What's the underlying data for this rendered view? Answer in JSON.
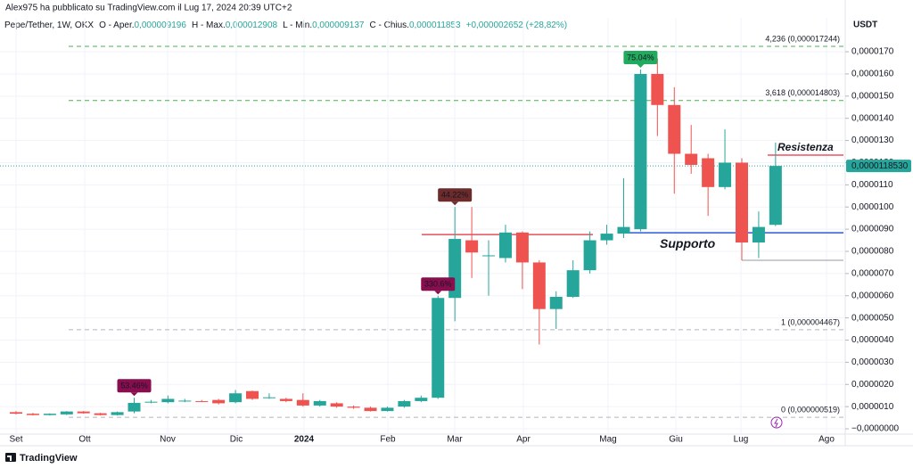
{
  "header": "Alex975 ha pubblicato su TradingView.com il Lug 17, 2024 20:39 UTC+2",
  "footer": "TradingView",
  "chart_data": {
    "type": "candlestick",
    "symbol": "Pepe/Tether, 1W, OKX",
    "legend": [
      {
        "label": "O - Aper.",
        "value": "0,000009196"
      },
      {
        "label": "H - Max.",
        "value": "0,000012908"
      },
      {
        "label": "L - Min.",
        "value": "0,000009137"
      },
      {
        "label": "C - Chius.",
        "value": "0,000011853"
      }
    ],
    "change": "+0,000002652 (+28,82%)",
    "y_unit": "USDT",
    "up_color": "#26a69a",
    "down_color": "#ef5350",
    "open": [
      7.5e-07,
      6.8e-07,
      6.2e-07,
      6.5e-07,
      7.8e-07,
      7e-07,
      6.2e-07,
      7.8e-07,
      1.2e-06,
      1.2e-06,
      1.25e-06,
      1.25e-06,
      1.3e-06,
      1.2e-06,
      1.7e-06,
      1.4e-06,
      1.35e-06,
      1.3e-06,
      1.05e-06,
      1.15e-06,
      1e-06,
      9.5e-07,
      8e-07,
      1e-06,
      1.25e-06,
      1.4e-06,
      5.9e-06,
      8.5e-06,
      7.8e-06,
      7.7e-06,
      8.85e-06,
      7.5e-06,
      5.4e-06,
      5.95e-06,
      7.15e-06,
      8.5e-06,
      8.8e-06,
      9e-06,
      1.6e-05,
      1.46e-05,
      1.24e-05,
      1.22e-05,
      1.09e-05,
      1.2e-05,
      8.4e-06,
      9.196e-06
    ],
    "high": [
      8e-07,
      7.2e-07,
      7e-07,
      8e-07,
      8e-07,
      7.2e-07,
      7.8e-07,
      1.4e-06,
      1.3e-06,
      1.5e-06,
      1.35e-06,
      1.3e-06,
      1.35e-06,
      1.75e-06,
      1.72e-06,
      1.6e-06,
      1.4e-06,
      1.6e-06,
      1.3e-06,
      1.2e-06,
      1.05e-06,
      1e-06,
      1e-06,
      1.3e-06,
      1.5e-06,
      6e-06,
      1e-05,
      1e-05,
      8.5e-06,
      9.2e-06,
      8.9e-06,
      7.6e-06,
      6.2e-06,
      7.6e-06,
      8.9e-06,
      9.2e-06,
      1.13e-05,
      1.62e-05,
      1.67e-05,
      1.54e-05,
      1.37e-05,
      1.24e-05,
      1.35e-05,
      1.22e-05,
      9.8e-06,
      1.2908e-05
    ],
    "low": [
      6.5e-07,
      6e-07,
      6e-07,
      6.2e-07,
      6.8e-07,
      6e-07,
      6e-07,
      7e-07,
      1.15e-06,
      1.15e-06,
      1.2e-06,
      1.2e-06,
      1.1e-06,
      1.15e-06,
      1.3e-06,
      1.35e-06,
      1.2e-06,
      1e-06,
      1e-06,
      9.5e-07,
      9e-07,
      7.8e-07,
      7.8e-07,
      9.5e-07,
      1.2e-06,
      1.35e-06,
      4.85e-06,
      6.8e-06,
      6e-06,
      7.5e-06,
      6.3e-06,
      3.8e-06,
      4.5e-06,
      5.9e-06,
      7e-06,
      8.3e-06,
      8.6e-06,
      8.9e-06,
      1.32e-05,
      1.06e-05,
      1.15e-05,
      9.6e-06,
      1.08e-05,
      7.6e-06,
      7.7e-06,
      9.137e-06
    ],
    "close": [
      6.8e-07,
      6.2e-07,
      6.8e-07,
      7.8e-07,
      7e-07,
      6.2e-07,
      7.5e-07,
      1.17e-06,
      1.22e-06,
      1.35e-06,
      1.27e-06,
      1.23e-06,
      1.15e-06,
      1.6e-06,
      1.35e-06,
      1.42e-06,
      1.25e-06,
      1.05e-06,
      1.25e-06,
      1e-06,
      9.5e-07,
      8e-07,
      9.5e-07,
      1.25e-06,
      1.4e-06,
      5.9e-06,
      8.56e-06,
      7.95e-06,
      7.82e-06,
      8.85e-06,
      7.5e-06,
      5.4e-06,
      5.95e-06,
      7.15e-06,
      8.5e-06,
      8.8e-06,
      9.1e-06,
      1.6e-05,
      1.46e-05,
      1.24e-05,
      1.19e-05,
      1.09e-05,
      1.2e-05,
      8.4e-06,
      9.1e-06,
      1.1853e-05
    ],
    "x_labels": [
      "Set",
      "Ott",
      "Nov",
      "Dic",
      "2024",
      "Feb",
      "Mar",
      "Apr",
      "Mag",
      "Giu",
      "Lug",
      "Ago"
    ],
    "ylim": [
      -2.4e-07,
      1.853e-05
    ],
    "yticks": [
      {
        "value": 0,
        "label": "−0,0000000"
      },
      {
        "value": 1e-06,
        "label": "0,0000010"
      },
      {
        "value": 2e-06,
        "label": "0,0000020"
      },
      {
        "value": 3e-06,
        "label": "0,0000030"
      },
      {
        "value": 4e-06,
        "label": "0,0000040"
      },
      {
        "value": 5e-06,
        "label": "0,0000050"
      },
      {
        "value": 6e-06,
        "label": "0,0000060"
      },
      {
        "value": 7e-06,
        "label": "0,0000070"
      },
      {
        "value": 8e-06,
        "label": "0,0000080"
      },
      {
        "value": 9e-06,
        "label": "0,0000090"
      },
      {
        "value": 1e-05,
        "label": "0,0000100"
      },
      {
        "value": 1.1e-05,
        "label": "0,0000110"
      },
      {
        "value": 1.2e-05,
        "label": "0,0000120"
      },
      {
        "value": 1.3e-05,
        "label": "0,0000130"
      },
      {
        "value": 1.4e-05,
        "label": "0,0000140"
      },
      {
        "value": 1.5e-05,
        "label": "0,0000150"
      },
      {
        "value": 1.6e-05,
        "label": "0,0000160"
      },
      {
        "value": 1.7e-05,
        "label": "0,0000170"
      }
    ],
    "grid": true,
    "last_price": {
      "value": 1.1853e-05,
      "label": "0,0000118530"
    },
    "fib_levels": [
      {
        "label": "4,236 (0,000017244)",
        "value": 1.7244e-05,
        "color": "#4caf50"
      },
      {
        "label": "3,618 (0,000014803)",
        "value": 1.4803e-05,
        "color": "#4caf50"
      },
      {
        "label": "1 (0,000004467)",
        "value": 4.467e-06,
        "color": "#b2b5be"
      },
      {
        "label": "0 (0,000000519)",
        "value": 5.19e-07,
        "color": "#b2b5be"
      }
    ],
    "levels": [
      {
        "label": "Resistenza",
        "value": 1.234e-05,
        "color": "#f05060"
      },
      {
        "label": "Supporto",
        "value": 8.84e-06,
        "color": "#2a5bd7"
      },
      {
        "value": 8.76e-06,
        "color": "#e0505a"
      },
      {
        "value": 7.6e-06,
        "color": "#9598a1"
      }
    ],
    "badges": [
      {
        "label": "53.46%",
        "color": "#880e4f"
      },
      {
        "label": "330.6%",
        "color": "#880e4f"
      },
      {
        "label": "44.22%",
        "color": "#6d2b2b"
      },
      {
        "label": "75.04%",
        "color": "#22ab5e"
      }
    ]
  }
}
